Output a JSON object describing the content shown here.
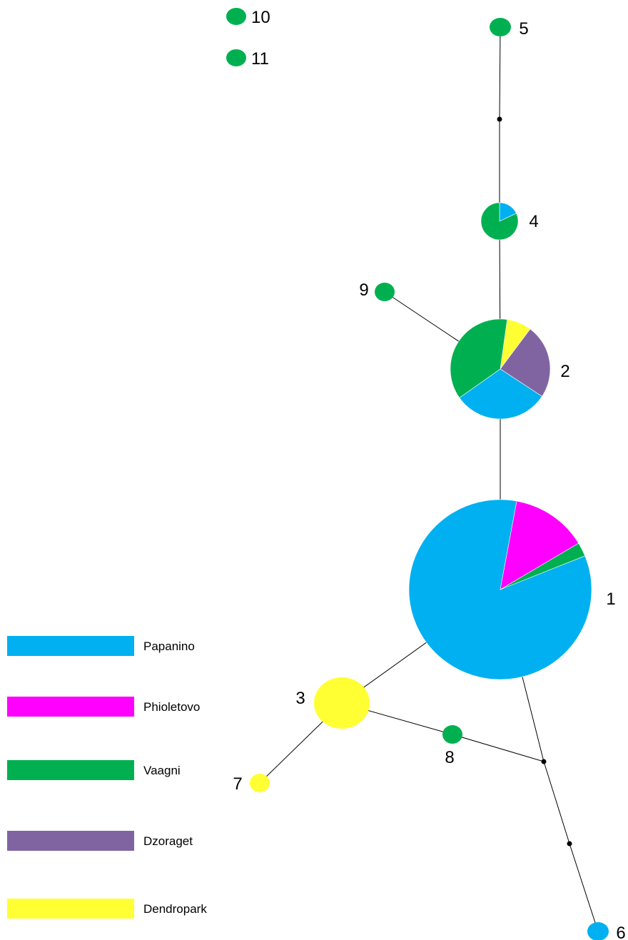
{
  "legend": [
    {
      "label": "Papanino",
      "color": "#00b0f0"
    },
    {
      "label": "Phioletovo",
      "color": "#ff00ff"
    },
    {
      "label": "Vaagni",
      "color": "#00b050"
    },
    {
      "label": "Dzoraget",
      "color": "#8064a2"
    },
    {
      "label": "Dendropark",
      "color": "#ffff33"
    }
  ],
  "haplotypes": [
    {
      "id": "1",
      "composition": [
        {
          "pop": "Papanino",
          "fraction": 0.84
        },
        {
          "pop": "Phioletovo",
          "fraction": 0.135
        },
        {
          "pop": "Vaagni",
          "fraction": 0.025
        }
      ]
    },
    {
      "id": "2",
      "composition": [
        {
          "pop": "Dendropark",
          "fraction": 0.08
        },
        {
          "pop": "Dzoraget",
          "fraction": 0.24
        },
        {
          "pop": "Papanino",
          "fraction": 0.31
        },
        {
          "pop": "Vaagni",
          "fraction": 0.37
        }
      ]
    },
    {
      "id": "3",
      "composition": [
        {
          "pop": "Dendropark",
          "fraction": 1.0
        }
      ]
    },
    {
      "id": "4",
      "composition": [
        {
          "pop": "Papanino",
          "fraction": 0.18
        },
        {
          "pop": "Vaagni",
          "fraction": 0.82
        }
      ]
    },
    {
      "id": "5",
      "composition": [
        {
          "pop": "Vaagni",
          "fraction": 1.0
        }
      ]
    },
    {
      "id": "6",
      "composition": [
        {
          "pop": "Papanino",
          "fraction": 1.0
        }
      ]
    },
    {
      "id": "7",
      "composition": [
        {
          "pop": "Dendropark",
          "fraction": 1.0
        }
      ]
    },
    {
      "id": "8",
      "composition": [
        {
          "pop": "Vaagni",
          "fraction": 1.0
        }
      ]
    },
    {
      "id": "9",
      "composition": [
        {
          "pop": "Vaagni",
          "fraction": 1.0
        }
      ]
    },
    {
      "id": "10",
      "composition": [
        {
          "pop": "Vaagni",
          "fraction": 1.0
        }
      ]
    },
    {
      "id": "11",
      "composition": [
        {
          "pop": "Vaagni",
          "fraction": 1.0
        }
      ]
    }
  ],
  "edges": [
    [
      "5",
      "mv-a"
    ],
    [
      "mv-a",
      "4"
    ],
    [
      "4",
      "2"
    ],
    [
      "2",
      "9"
    ],
    [
      "2",
      "1"
    ],
    [
      "1",
      "3"
    ],
    [
      "3",
      "7"
    ],
    [
      "3",
      "8"
    ],
    [
      "8",
      "mv-b"
    ],
    [
      "1",
      "mv-b"
    ],
    [
      "mv-b",
      "mv-c"
    ],
    [
      "mv-c",
      "6"
    ]
  ]
}
